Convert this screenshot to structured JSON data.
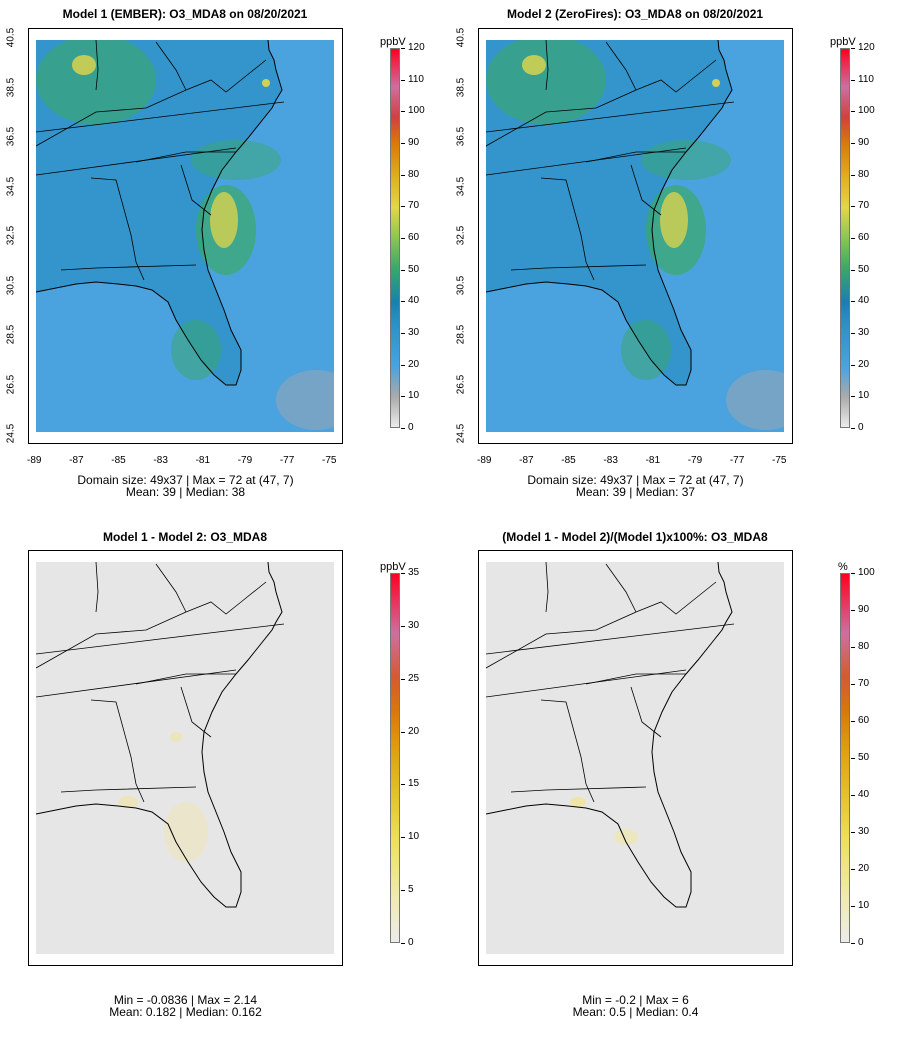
{
  "panels": [
    {
      "title": "Model 1 (EMBER): O3_MDA8 on 08/20/2021",
      "kind": "conc",
      "xticks": [
        "-89",
        "-87",
        "-85",
        "-83",
        "-81",
        "-79",
        "-77",
        "-75"
      ],
      "yticks": [
        "24.5",
        "26.5",
        "28.5",
        "30.5",
        "32.5",
        "34.5",
        "36.5",
        "38.5",
        "40.5"
      ],
      "info_line1": "Domain size: 49x37 | Max = 72 at (47, 7)",
      "info_line2": "Mean: 39 |  Median: 38",
      "colorbar": {
        "unit": "ppbV",
        "labels": [
          "120",
          "110",
          "100",
          "90",
          "80",
          "70",
          "60",
          "50",
          "40",
          "30",
          "20",
          "10",
          "0"
        ]
      }
    },
    {
      "title": "Model 2 (ZeroFires): O3_MDA8 on 08/20/2021",
      "kind": "conc",
      "xticks": [
        "-89",
        "-87",
        "-85",
        "-83",
        "-81",
        "-79",
        "-77",
        "-75"
      ],
      "yticks": [
        "24.5",
        "26.5",
        "28.5",
        "30.5",
        "32.5",
        "34.5",
        "36.5",
        "38.5",
        "40.5"
      ],
      "info_line1": "Domain size: 49x37 | Max = 72 at (47, 7)",
      "info_line2": "Mean: 39 |  Median: 37",
      "colorbar": {
        "unit": "ppbV",
        "labels": [
          "120",
          "110",
          "100",
          "90",
          "80",
          "70",
          "60",
          "50",
          "40",
          "30",
          "20",
          "10",
          "0"
        ]
      }
    },
    {
      "title": "Model 1 - Model 2: O3_MDA8",
      "kind": "diff",
      "info_line1": "Min = -0.0836 | Max = 2.14",
      "info_line2": "Mean: 0.182 |  Median: 0.162",
      "colorbar": {
        "unit": "ppbV",
        "labels": [
          "35",
          "30",
          "25",
          "20",
          "15",
          "10",
          "5",
          "0"
        ]
      }
    },
    {
      "title": "(Model 1 - Model 2)/(Model 1)x100%: O3_MDA8",
      "kind": "pct",
      "info_line1": "Min = -0.2 | Max = 6",
      "info_line2": "Mean: 0.5 |  Median: 0.4",
      "colorbar": {
        "unit": "%",
        "labels": [
          "100",
          "90",
          "80",
          "70",
          "60",
          "50",
          "40",
          "30",
          "20",
          "10",
          "0"
        ]
      }
    }
  ],
  "colors": {
    "ocean": "#4aa3df",
    "land_mid": "#2a8fc2",
    "green": "#3aa867",
    "yellow": "#e3d64a",
    "diff_bg": "#e6e6e6"
  }
}
